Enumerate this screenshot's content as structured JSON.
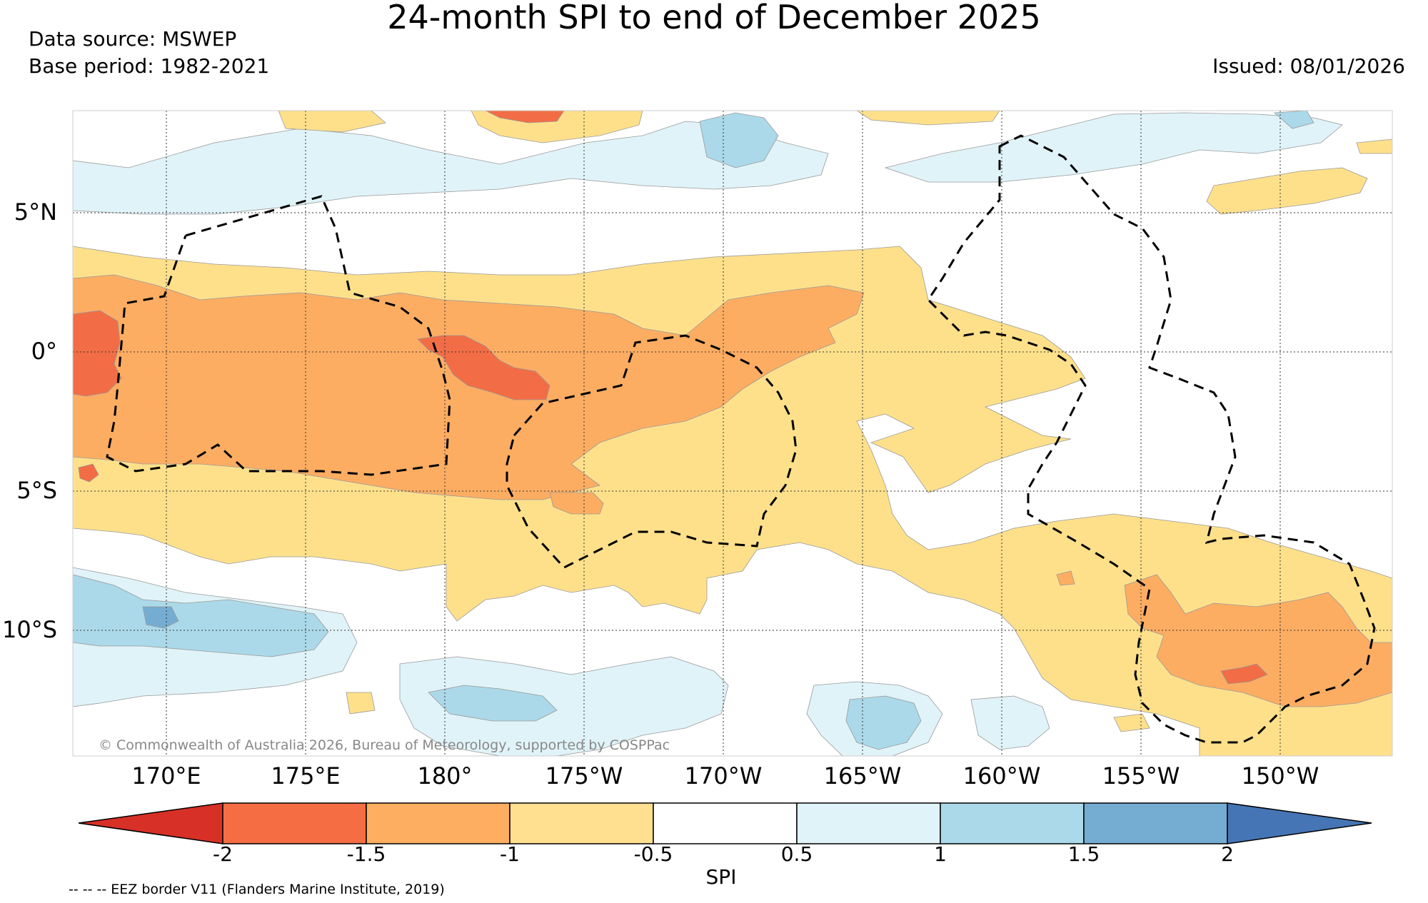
{
  "header": {
    "title": "24-month SPI to end of December 2025",
    "data_source": "Data source: MSWEP",
    "base_period": "Base period: 1982-2021",
    "issued": "Issued: 08/01/2026"
  },
  "map": {
    "lat_labels": [
      "5°N",
      "0°",
      "5°S",
      "10°S"
    ],
    "lon_labels": [
      "170°E",
      "175°E",
      "180°",
      "175°W",
      "170°W",
      "165°W",
      "160°W",
      "155°W",
      "150°W"
    ],
    "copyright": "© Commonwealth of Australia 2026, Bureau of Meteorology, supported by COSPPac",
    "colors": {
      "spi_lt_-1.5": "#f26d45",
      "spi_-1.5_-1": "#fdad62",
      "spi_-1_-0.5": "#fee08b",
      "spi_normal": "#ffffff",
      "spi_0.5_1": "#e0f3f8",
      "spi_1_1.5": "#abd9e9",
      "spi_1.5_2": "#74add1"
    }
  },
  "colorbar": {
    "label": "SPI",
    "ticks": [
      "-2",
      "-1.5",
      "-1",
      "-0.5",
      "0.5",
      "1",
      "1.5",
      "2"
    ],
    "colors": [
      "#d73027",
      "#f46d43",
      "#fdae61",
      "#fee090",
      "#ffffff",
      "#e0f3f8",
      "#abd9e9",
      "#74add1",
      "#4575b4"
    ]
  },
  "footer": {
    "eez_note": "-- -- -- EEZ border V11 (Flanders Marine Institute, 2019)"
  }
}
